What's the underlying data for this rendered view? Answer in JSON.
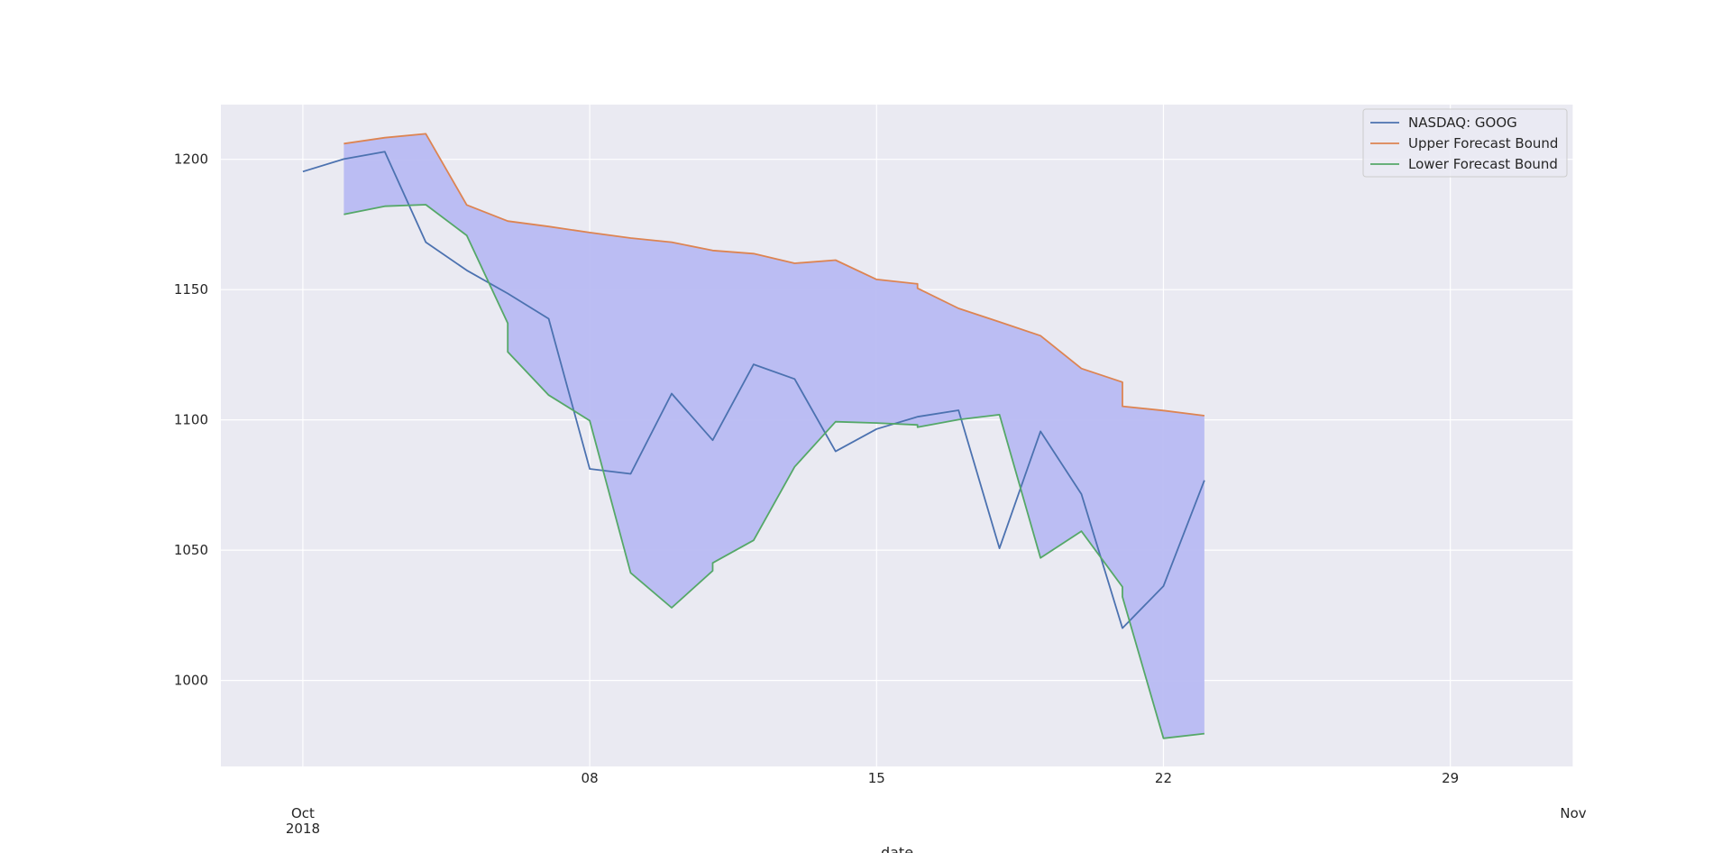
{
  "chart_data": {
    "type": "line",
    "title": "",
    "xlabel": "date",
    "ylabel": "",
    "x_range": [
      "2018-09-29",
      "2018-11-01"
    ],
    "ylim": [
      967,
      1221
    ],
    "grid": true,
    "legend_position": "top-right",
    "fill_between": {
      "lower_series": "Lower Forecast Bound",
      "upper_series": "Upper Forecast Bound",
      "color": "#b8baf2"
    },
    "x_ticks": [
      {
        "date": "2018-10-01",
        "label": "Oct",
        "sublabel": "2018"
      },
      {
        "date": "2018-10-08",
        "label": "08",
        "sublabel": ""
      },
      {
        "date": "2018-10-15",
        "label": "15",
        "sublabel": ""
      },
      {
        "date": "2018-10-22",
        "label": "22",
        "sublabel": ""
      },
      {
        "date": "2018-10-29",
        "label": "29",
        "sublabel": ""
      },
      {
        "date": "2018-11-01",
        "label": "Nov",
        "sublabel": ""
      }
    ],
    "y_ticks": [
      1000,
      1050,
      1100,
      1150,
      1200
    ],
    "series": [
      {
        "name": "NASDAQ: GOOG",
        "color": "#4c72b0",
        "points": [
          [
            "2018-10-01",
            1195.3
          ],
          [
            "2018-10-02",
            1200.1
          ],
          [
            "2018-10-03",
            1202.9
          ],
          [
            "2018-10-04",
            1168.2
          ],
          [
            "2018-10-05",
            1157.4
          ],
          [
            "2018-10-06",
            1148.5
          ],
          [
            "2018-10-07",
            1138.8
          ],
          [
            "2018-10-08",
            1081.2
          ],
          [
            "2018-10-09",
            1079.3
          ],
          [
            "2018-10-10",
            1110.1
          ],
          [
            "2018-10-11",
            1092.2
          ],
          [
            "2018-10-12",
            1121.3
          ],
          [
            "2018-10-13",
            1115.7
          ],
          [
            "2018-10-14",
            1087.9
          ],
          [
            "2018-10-15",
            1096.5
          ],
          [
            "2018-10-16",
            1101.2
          ],
          [
            "2018-10-17",
            1103.7
          ],
          [
            "2018-10-18",
            1050.7
          ],
          [
            "2018-10-19",
            1095.6
          ],
          [
            "2018-10-20",
            1071.5
          ],
          [
            "2018-10-21",
            1020.1
          ],
          [
            "2018-10-22",
            1036.2
          ],
          [
            "2018-10-23",
            1076.8
          ]
        ]
      },
      {
        "name": "Upper Forecast Bound",
        "color": "#dd8452",
        "points": [
          [
            "2018-10-02",
            1206.0
          ],
          [
            "2018-10-03",
            1208.3
          ],
          [
            "2018-10-04",
            1209.8
          ],
          [
            "2018-10-05",
            1182.5
          ],
          [
            "2018-10-06",
            1176.3
          ],
          [
            "2018-10-07",
            1174.2
          ],
          [
            "2018-10-08",
            1171.9
          ],
          [
            "2018-10-09",
            1169.8
          ],
          [
            "2018-10-10",
            1168.2
          ],
          [
            "2018-10-11",
            1165.0
          ],
          [
            "2018-10-12",
            1163.8
          ],
          [
            "2018-10-13",
            1160.1
          ],
          [
            "2018-10-14",
            1161.3
          ],
          [
            "2018-10-15",
            1153.9
          ],
          [
            "2018-10-16",
            1152.2
          ],
          [
            "2018-10-16",
            1150.5
          ],
          [
            "2018-10-17",
            1142.8
          ],
          [
            "2018-10-18",
            1137.6
          ],
          [
            "2018-10-19",
            1132.3
          ],
          [
            "2018-10-20",
            1119.7
          ],
          [
            "2018-10-21",
            1114.5
          ],
          [
            "2018-10-21",
            1105.2
          ],
          [
            "2018-10-22",
            1103.6
          ],
          [
            "2018-10-23",
            1101.6
          ]
        ]
      },
      {
        "name": "Lower Forecast Bound",
        "color": "#55a868",
        "points": [
          [
            "2018-10-02",
            1178.9
          ],
          [
            "2018-10-03",
            1182.0
          ],
          [
            "2018-10-04",
            1182.6
          ],
          [
            "2018-10-05",
            1170.8
          ],
          [
            "2018-10-06",
            1137.1
          ],
          [
            "2018-10-06",
            1126.1
          ],
          [
            "2018-10-07",
            1109.5
          ],
          [
            "2018-10-08",
            1099.7
          ],
          [
            "2018-10-09",
            1041.3
          ],
          [
            "2018-10-10",
            1027.9
          ],
          [
            "2018-10-11",
            1042.1
          ],
          [
            "2018-10-11",
            1045.1
          ],
          [
            "2018-10-12",
            1053.8
          ],
          [
            "2018-10-13",
            1082.0
          ],
          [
            "2018-10-14",
            1099.3
          ],
          [
            "2018-10-15",
            1098.8
          ],
          [
            "2018-10-16",
            1098.1
          ],
          [
            "2018-10-16",
            1097.2
          ],
          [
            "2018-10-17",
            1100.1
          ],
          [
            "2018-10-18",
            1102.0
          ],
          [
            "2018-10-19",
            1047.0
          ],
          [
            "2018-10-20",
            1057.3
          ],
          [
            "2018-10-21",
            1035.9
          ],
          [
            "2018-10-21",
            1032.1
          ],
          [
            "2018-10-22",
            977.8
          ],
          [
            "2018-10-23",
            979.6
          ]
        ]
      }
    ]
  }
}
